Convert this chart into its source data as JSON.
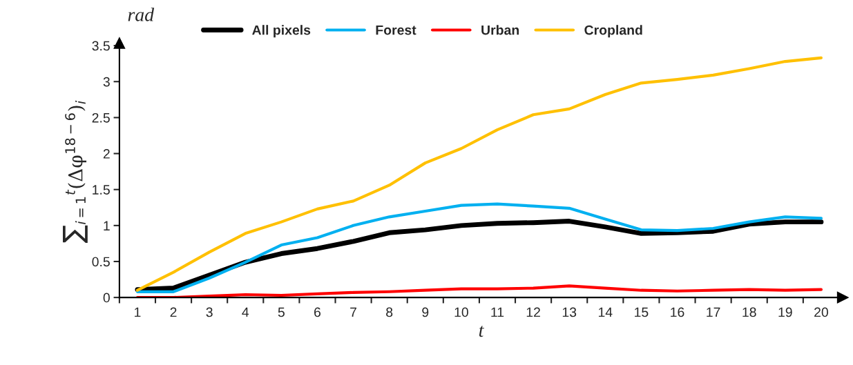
{
  "chart_data": {
    "type": "line",
    "xlabel": "t",
    "ylabel": "∑$_{i=1}$$^{t}$(Δφ$^{18−6}$)$_{i}$",
    "annotations": [
      "rad"
    ],
    "categories": [
      "1",
      "2",
      "3",
      "4",
      "5",
      "6",
      "7",
      "8",
      "9",
      "10",
      "11",
      "12",
      "13",
      "14",
      "15",
      "16",
      "17",
      "18",
      "19",
      "20"
    ],
    "series": [
      {
        "name": "All pixels",
        "color": "#000000",
        "values": [
          0.11,
          0.13,
          0.31,
          0.49,
          0.61,
          0.68,
          0.78,
          0.9,
          0.94,
          1.0,
          1.03,
          1.04,
          1.06,
          0.98,
          0.89,
          0.9,
          0.92,
          1.02,
          1.05,
          1.05
        ]
      },
      {
        "name": "Forest",
        "color": "#00b0f0",
        "values": [
          0.08,
          0.08,
          0.27,
          0.49,
          0.73,
          0.83,
          1.0,
          1.12,
          1.2,
          1.28,
          1.3,
          1.27,
          1.24,
          1.09,
          0.94,
          0.93,
          0.96,
          1.05,
          1.12,
          1.1
        ]
      },
      {
        "name": "Urban",
        "color": "#ff0000",
        "values": [
          0.0,
          0.0,
          0.02,
          0.04,
          0.03,
          0.05,
          0.07,
          0.08,
          0.1,
          0.12,
          0.12,
          0.13,
          0.16,
          0.13,
          0.1,
          0.09,
          0.1,
          0.11,
          0.1,
          0.11
        ]
      },
      {
        "name": "Cropland",
        "color": "#ffc000",
        "values": [
          0.1,
          0.35,
          0.63,
          0.89,
          1.05,
          1.23,
          1.34,
          1.56,
          1.87,
          2.07,
          2.33,
          2.54,
          2.62,
          2.82,
          2.98,
          3.03,
          3.09,
          3.18,
          3.28,
          3.33
        ]
      }
    ],
    "ylim": [
      0,
      3.5
    ],
    "yticks": [
      0,
      0.5,
      1,
      1.5,
      2,
      2.5,
      3,
      3.5
    ],
    "grid": false,
    "legend": "top",
    "marker": "none",
    "line_style": "solid"
  }
}
